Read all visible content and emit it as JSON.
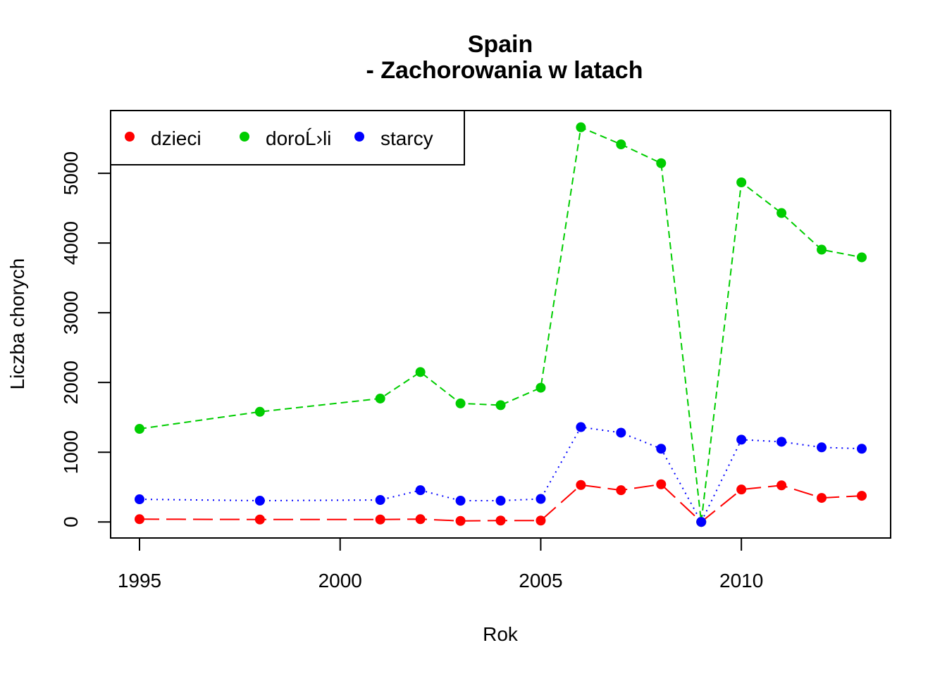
{
  "chart_data": {
    "type": "line",
    "title_line1": "Spain",
    "title_line2": "- Zachorowania w latach",
    "xlabel": "Rok",
    "ylabel": "Liczba chorych",
    "x_ticks": [
      1995,
      2000,
      2005,
      2010
    ],
    "y_ticks": [
      0,
      1000,
      2000,
      3000,
      4000,
      5000
    ],
    "xlim": [
      1994.28,
      2013.72
    ],
    "ylim": [
      -230,
      5900
    ],
    "legend_placement": "top-left",
    "x": [
      1995,
      1998,
      2001,
      2002,
      2003,
      2004,
      2005,
      2006,
      2007,
      2008,
      2009,
      2010,
      2011,
      2012,
      2013
    ],
    "series": [
      {
        "name": "dzieci",
        "color": "#ff0000",
        "line_style": "dashed-long",
        "values": [
          40,
          35,
          35,
          40,
          15,
          20,
          20,
          530,
          455,
          540,
          0,
          465,
          525,
          345,
          375
        ]
      },
      {
        "name": "doroĹ›li",
        "color": "#00cd00",
        "line_style": "dashed",
        "values": [
          1335,
          1580,
          1770,
          2150,
          1700,
          1675,
          1925,
          5660,
          5415,
          5145,
          0,
          4870,
          4430,
          3905,
          3795
        ]
      },
      {
        "name": "starcy",
        "color": "#0000ff",
        "line_style": "dotted",
        "values": [
          325,
          305,
          315,
          455,
          305,
          305,
          330,
          1360,
          1280,
          1050,
          0,
          1180,
          1150,
          1070,
          1050
        ]
      }
    ]
  }
}
